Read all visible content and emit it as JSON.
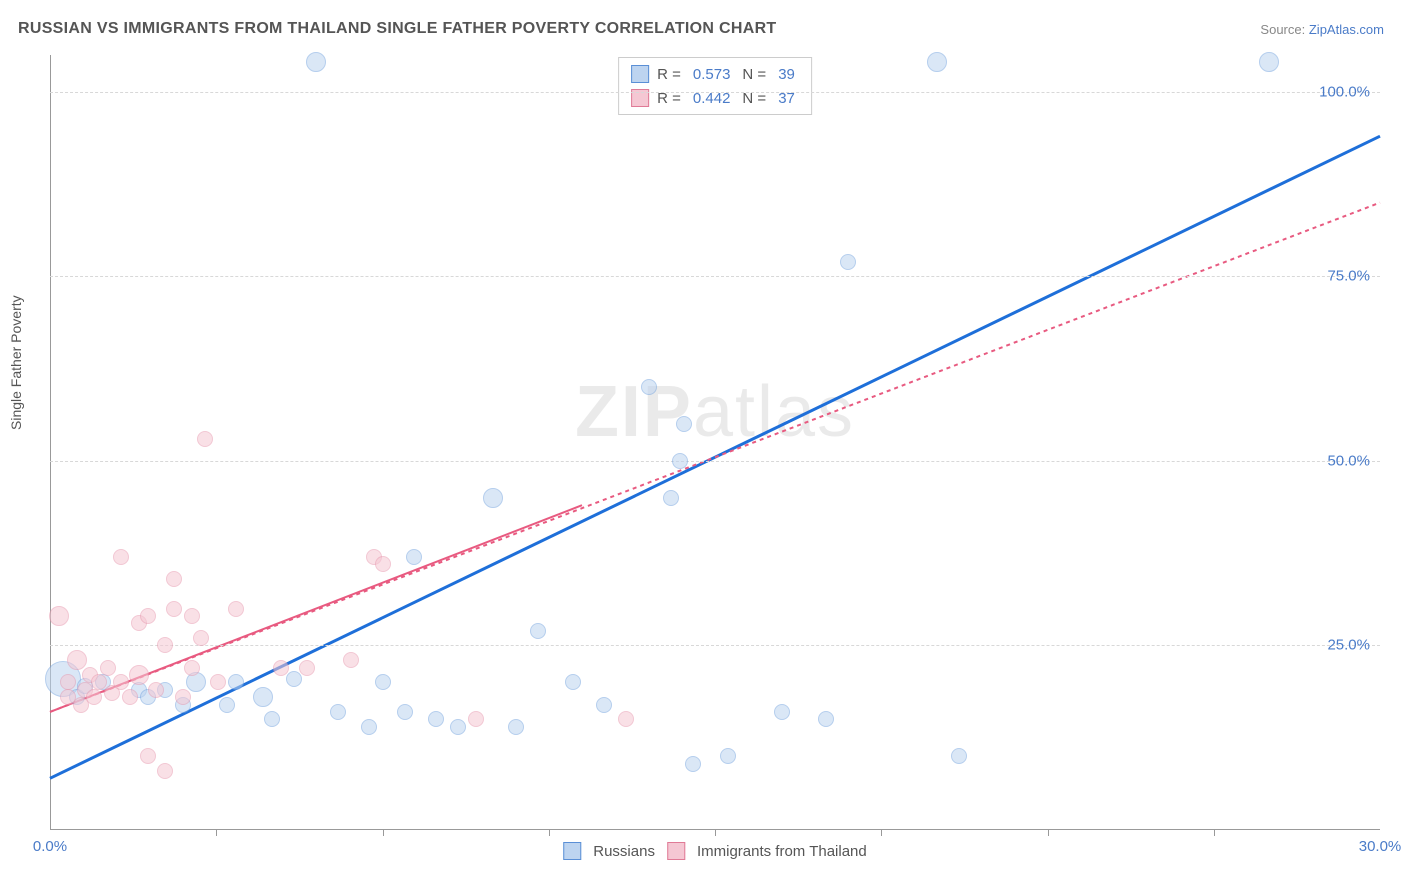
{
  "title": "RUSSIAN VS IMMIGRANTS FROM THAILAND SINGLE FATHER POVERTY CORRELATION CHART",
  "source_label": "Source:",
  "source_value": "ZipAtlas.com",
  "y_axis_label": "Single Father Poverty",
  "watermark": {
    "bold": "ZIP",
    "rest": "atlas"
  },
  "chart": {
    "type": "scatter",
    "xlim": [
      0,
      30
    ],
    "ylim": [
      0,
      105
    ],
    "x_ticks": [
      0,
      30
    ],
    "x_tick_labels": [
      "0.0%",
      "30.0%"
    ],
    "x_minor_ticks": [
      3.75,
      7.5,
      11.25,
      15,
      18.75,
      22.5,
      26.25
    ],
    "y_ticks": [
      25,
      50,
      75,
      100
    ],
    "y_tick_labels": [
      "25.0%",
      "50.0%",
      "75.0%",
      "100.0%"
    ],
    "y_gridlines": [
      25,
      50,
      75,
      100
    ],
    "background_color": "#ffffff",
    "grid_color": "#d8d8d8",
    "axis_color": "#999999",
    "tick_label_color": "#4a7bc8",
    "series": [
      {
        "name": "Russians",
        "color": "#7aa7e0",
        "fill": "#bdd4f0",
        "fill_opacity": 0.55,
        "marker_radius_default": 8,
        "legend_swatch_fill": "#bdd4f0",
        "legend_swatch_border": "#5a8fd6",
        "trend": {
          "x1": 0,
          "y1": 7,
          "x2": 30,
          "y2": 94,
          "color": "#1e6fd9",
          "width": 3,
          "dash": "none"
        },
        "stats": {
          "R": "0.573",
          "N": "39"
        },
        "points": [
          {
            "x": 0.3,
            "y": 20.5,
            "r": 18
          },
          {
            "x": 0.6,
            "y": 18,
            "r": 8
          },
          {
            "x": 0.8,
            "y": 19.5,
            "r": 8
          },
          {
            "x": 1.2,
            "y": 20,
            "r": 8
          },
          {
            "x": 2.0,
            "y": 19,
            "r": 8
          },
          {
            "x": 2.2,
            "y": 18,
            "r": 8
          },
          {
            "x": 2.6,
            "y": 19,
            "r": 8
          },
          {
            "x": 3.0,
            "y": 17,
            "r": 8
          },
          {
            "x": 3.3,
            "y": 20,
            "r": 10
          },
          {
            "x": 4.0,
            "y": 17,
            "r": 8
          },
          {
            "x": 4.2,
            "y": 20,
            "r": 8
          },
          {
            "x": 4.8,
            "y": 18,
            "r": 10
          },
          {
            "x": 5.0,
            "y": 15,
            "r": 8
          },
          {
            "x": 5.5,
            "y": 20.5,
            "r": 8
          },
          {
            "x": 6.5,
            "y": 16,
            "r": 8
          },
          {
            "x": 7.2,
            "y": 14,
            "r": 8
          },
          {
            "x": 7.5,
            "y": 20,
            "r": 8
          },
          {
            "x": 8.0,
            "y": 16,
            "r": 8
          },
          {
            "x": 8.2,
            "y": 37,
            "r": 8
          },
          {
            "x": 8.7,
            "y": 15,
            "r": 8
          },
          {
            "x": 9.2,
            "y": 14,
            "r": 8
          },
          {
            "x": 10.0,
            "y": 45,
            "r": 10
          },
          {
            "x": 10.5,
            "y": 14,
            "r": 8
          },
          {
            "x": 11.0,
            "y": 27,
            "r": 8
          },
          {
            "x": 11.8,
            "y": 20,
            "r": 8
          },
          {
            "x": 12.5,
            "y": 17,
            "r": 8
          },
          {
            "x": 13.5,
            "y": 60,
            "r": 8
          },
          {
            "x": 14.0,
            "y": 45,
            "r": 8
          },
          {
            "x": 14.2,
            "y": 50,
            "r": 8
          },
          {
            "x": 14.3,
            "y": 55,
            "r": 8
          },
          {
            "x": 14.5,
            "y": 9,
            "r": 8
          },
          {
            "x": 15.3,
            "y": 10,
            "r": 8
          },
          {
            "x": 16.5,
            "y": 16,
            "r": 8
          },
          {
            "x": 17.5,
            "y": 15,
            "r": 8
          },
          {
            "x": 18.0,
            "y": 77,
            "r": 8
          },
          {
            "x": 20.0,
            "y": 104,
            "r": 10
          },
          {
            "x": 20.5,
            "y": 10,
            "r": 8
          },
          {
            "x": 27.5,
            "y": 104,
            "r": 10
          },
          {
            "x": 6.0,
            "y": 104,
            "r": 10
          }
        ]
      },
      {
        "name": "Immigrants from Thailand",
        "color": "#e89bb0",
        "fill": "#f5c7d3",
        "fill_opacity": 0.55,
        "marker_radius_default": 8,
        "legend_swatch_fill": "#f5c7d3",
        "legend_swatch_border": "#e07a96",
        "trend": {
          "x1": 0,
          "y1": 16,
          "x2": 30,
          "y2": 85,
          "color": "#e85a80",
          "width": 2,
          "dash": "4,4"
        },
        "trend_solid": {
          "x1": 0,
          "y1": 16,
          "x2": 12,
          "y2": 44,
          "color": "#e85a80",
          "width": 2
        },
        "stats": {
          "R": "0.442",
          "N": "37"
        },
        "points": [
          {
            "x": 0.2,
            "y": 29,
            "r": 10
          },
          {
            "x": 0.4,
            "y": 18,
            "r": 8
          },
          {
            "x": 0.4,
            "y": 20,
            "r": 8
          },
          {
            "x": 0.6,
            "y": 23,
            "r": 10
          },
          {
            "x": 0.7,
            "y": 17,
            "r": 8
          },
          {
            "x": 0.8,
            "y": 19,
            "r": 8
          },
          {
            "x": 0.9,
            "y": 21,
            "r": 8
          },
          {
            "x": 1.0,
            "y": 18,
            "r": 8
          },
          {
            "x": 1.1,
            "y": 20,
            "r": 8
          },
          {
            "x": 1.3,
            "y": 22,
            "r": 8
          },
          {
            "x": 1.4,
            "y": 18.5,
            "r": 8
          },
          {
            "x": 1.6,
            "y": 20,
            "r": 8
          },
          {
            "x": 1.6,
            "y": 37,
            "r": 8
          },
          {
            "x": 1.8,
            "y": 18,
            "r": 8
          },
          {
            "x": 2.0,
            "y": 28,
            "r": 8
          },
          {
            "x": 2.0,
            "y": 21,
            "r": 10
          },
          {
            "x": 2.2,
            "y": 10,
            "r": 8
          },
          {
            "x": 2.2,
            "y": 29,
            "r": 8
          },
          {
            "x": 2.4,
            "y": 19,
            "r": 8
          },
          {
            "x": 2.6,
            "y": 25,
            "r": 8
          },
          {
            "x": 2.6,
            "y": 8,
            "r": 8
          },
          {
            "x": 2.8,
            "y": 30,
            "r": 8
          },
          {
            "x": 2.8,
            "y": 34,
            "r": 8
          },
          {
            "x": 3.0,
            "y": 18,
            "r": 8
          },
          {
            "x": 3.2,
            "y": 29,
            "r": 8
          },
          {
            "x": 3.2,
            "y": 22,
            "r": 8
          },
          {
            "x": 3.4,
            "y": 26,
            "r": 8
          },
          {
            "x": 3.5,
            "y": 53,
            "r": 8
          },
          {
            "x": 3.8,
            "y": 20,
            "r": 8
          },
          {
            "x": 4.2,
            "y": 30,
            "r": 8
          },
          {
            "x": 5.2,
            "y": 22,
            "r": 8
          },
          {
            "x": 5.8,
            "y": 22,
            "r": 8
          },
          {
            "x": 6.8,
            "y": 23,
            "r": 8
          },
          {
            "x": 7.3,
            "y": 37,
            "r": 8
          },
          {
            "x": 7.5,
            "y": 36,
            "r": 8
          },
          {
            "x": 9.6,
            "y": 15,
            "r": 8
          },
          {
            "x": 13.0,
            "y": 15,
            "r": 8
          }
        ]
      }
    ]
  },
  "legend_bottom": [
    {
      "label": "Russians",
      "fill": "#bdd4f0",
      "border": "#5a8fd6"
    },
    {
      "label": "Immigrants from Thailand",
      "fill": "#f5c7d3",
      "border": "#e07a96"
    }
  ]
}
